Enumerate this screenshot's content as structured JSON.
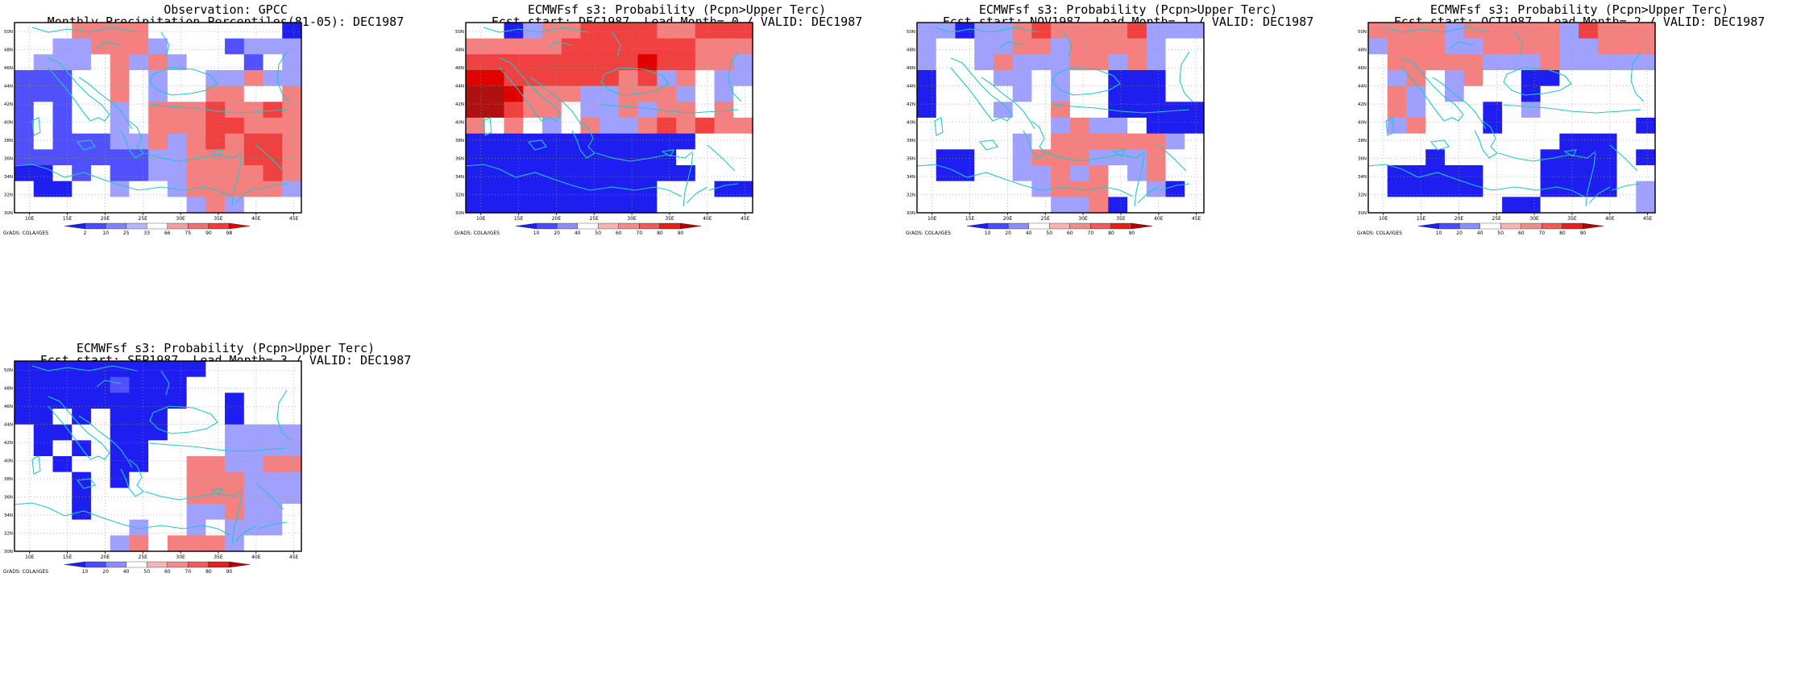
{
  "panels": [
    {
      "title1": "Observation: GPCC",
      "title2": "Monthly Precipitation Percentiles(81-05): DEC1987",
      "legend": [
        "2",
        "10",
        "25",
        "33",
        "66",
        "75",
        "90",
        "98"
      ],
      "credit": "GrADS: COLA/IGES",
      "grid": [
        "WWWRRRRWWWWWWWB",
        "WWLLRRRLWWWDLLL",
        "WLLLWRLRLWWWDWL",
        "DDDWWRWLWWLLRLL",
        "DDDWWRWLWWRRWWR",
        "DWDWWLWRRRSRRSR",
        "DWDWWLWRRRSSRRR",
        "DWDDDLLRLRSRSSR",
        "DDDDDDDLLRRRSSR",
        "BBWDWDDLLRRRRSR",
        "WBBWWLWWLRRRRRL",
        "WWWWWWWWWLRLWWW"
      ]
    },
    {
      "title1": "ECMWFsf s3: Probability (Pcpn>Upper Terc)",
      "title2": "Fcst start: DEC1987  Lead Month= 0 / VALID: DEC1987",
      "legend": [
        "10",
        "20",
        "40",
        "50",
        "60",
        "70",
        "80",
        "90"
      ],
      "credit": "GrADS: COLA/IGES",
      "grid": [
        "WWBLRRSSSSRRSSS",
        "RRRRRSSSSSSSRRR",
        "SSSSSSSSSTSSRRL",
        "TTSSSSSSRSLRWLL",
        "UUTRRRLLRRRLWLW",
        "UUSRRWLLRLRRWRW",
        "RWRWLWRLLRSRSRR",
        "BBBBBBBBBBBBWWW",
        "BBBBBBBBBBBWWWW",
        "BBBBBBBBBBBBWWW",
        "BBBBBBBBBBWWWBB",
        "BBBBBBBBBBWWWWW"
      ]
    },
    {
      "title1": "ECMWFsf s3: Probability (Pcpn>Upper Terc)",
      "title2": "Fcst start: NOV1987  Lead Month= 1 / VALID: DEC1987",
      "legend": [
        "10",
        "20",
        "40",
        "50",
        "60",
        "70",
        "80",
        "90"
      ],
      "credit": "GrADS: COLA/IGES",
      "grid": [
        "LLBLLRSRRRRSLLL",
        "LWWLLRRLRRRRLWW",
        "LWWLRLLLRRLRLWW",
        "BWWWLLWLWWBBBWW",
        "BWWWWLWLWWBBBWW",
        "BWWWLWWRWWBBBBB",
        "WWWWWWWLRLLWBBB",
        "WWWWWLWRRRRRRLW",
        "WBBWWLRRRLLLRWW",
        "WBBWWLLRLRWLRWW",
        "WWWWWWLRRRWWLBW",
        "WWWWWWWLLRBWWWW"
      ]
    },
    {
      "title1": "ECMWFsf s3: Probability (Pcpn>Upper Terc)",
      "title2": "Fcst start: OCT1987  Lead Month= 2 / VALID: DEC1987",
      "legend": [
        "10",
        "20",
        "40",
        "50",
        "60",
        "70",
        "80",
        "90"
      ],
      "credit": "GrADS: COLA/IGES",
      "grid": [
        "RRRRLRRRRRLSRRR",
        "LRRRLLRRRRLLRRR",
        "WRRRRRLLLRLLLLL",
        "WLRWLRWWBBWWWWW",
        "WRLWLWWWBWWWWWW",
        "WRLWWWBWLWWWWWW",
        "WLRWWWBWWWWWWWB",
        "WWWWWWWWWWBBBWW",
        "WWWBWWWWWBBBBWB",
        "WBBBBBWWWBBBBWW",
        "WBBBBBWWWBBBBWL",
        "WWWWWWWBBWWWWWL"
      ]
    },
    {
      "title1": "ECMWFsf s3: Probability (Pcpn>Upper Terc)",
      "title2": "Fcst start: SEP1987  Lead Month= 3 / VALID: DEC1987",
      "legend": [
        "10",
        "20",
        "40",
        "50",
        "60",
        "70",
        "80",
        "90"
      ],
      "credit": "GrADS: COLA/IGES",
      "grid": [
        "BBBBBBBBBBWWWWW",
        "BBBBBDBBBWWWWWW",
        "BBBBBBBBBWWBWWW",
        "BBWBWBBBWWWBWWW",
        "WBBWWBBBWWWLLLL",
        "WBWBWBBWWWWLLLL",
        "WWBWWBBWWRRLLRR",
        "WWWBWBWWWRRRLLL",
        "WWWBWWWWWRRRLLL",
        "WWWBWWWWWLLRLLW",
        "WWWWWWLWWLWLLLW",
        "WWWWWLRWRRRLWWW"
      ]
    }
  ],
  "axes": {
    "lon_labels": [
      "10E",
      "15E",
      "20E",
      "25E",
      "30E",
      "35E",
      "40E",
      "45E"
    ],
    "lat_labels": [
      "50N",
      "48N",
      "46N",
      "44N",
      "42N",
      "40N",
      "38N",
      "36N",
      "34N",
      "32N",
      "30N"
    ]
  },
  "colors": {
    "W": "#ffffff",
    "B": "#1e1ef0",
    "D": "#5050ff",
    "L": "#a0a0ff",
    "P": "#f0a0a0",
    "R": "#f58080",
    "S": "#f04040",
    "T": "#e00000",
    "U": "#b01010",
    "coast": "#20c8c8",
    "frame": "#000000",
    "obs_legend": [
      "#1e1ef0",
      "#4b4bff",
      "#8282ff",
      "#b4b4ff",
      "#ffffff",
      "#f0a0a0",
      "#f07070",
      "#f03c3c",
      "#e00000"
    ],
    "fc_legend": [
      "#1e1ef0",
      "#4b4bff",
      "#8c8cff",
      "#ffffff",
      "#f5b4b4",
      "#f08c8c",
      "#f05a5a",
      "#e61e1e",
      "#b40000"
    ]
  },
  "map_note": "coast-outline"
}
